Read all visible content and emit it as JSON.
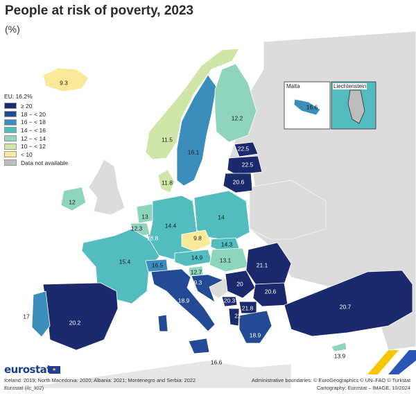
{
  "title": "People at risk of poverty, 2023",
  "subtitle": "(%)",
  "legend": {
    "heading": "EU: 16.2%",
    "items": [
      {
        "label": "≥ 20",
        "color": "#1a2a6c"
      },
      {
        "label": "18 − < 20",
        "color": "#234a94"
      },
      {
        "label": "16 − < 18",
        "color": "#3b8dbb"
      },
      {
        "label": "14 − < 16",
        "color": "#53bcbf"
      },
      {
        "label": "12 − < 14",
        "color": "#8fd5bc"
      },
      {
        "label": "10 − < 12",
        "color": "#cfe6a8"
      },
      {
        "label": "< 10",
        "color": "#fbe99a"
      },
      {
        "label": "Data not available",
        "color": "#bdbdbd"
      }
    ]
  },
  "insets": {
    "malta": "Malta",
    "liechtenstein": "Liechtenstein"
  },
  "colors": {
    "non_eu": "#dcdcdc",
    "sea": "#ffffff",
    "border": "#ffffff"
  },
  "map_data": [
    {
      "country": "Iceland",
      "value": "9.3",
      "cls": 6
    },
    {
      "country": "Norway",
      "value": "11.5",
      "cls": 5
    },
    {
      "country": "Sweden",
      "value": "16.1",
      "cls": 2
    },
    {
      "country": "Finland",
      "value": "12.2",
      "cls": 4
    },
    {
      "country": "Estonia",
      "value": "22.5",
      "cls": 0
    },
    {
      "country": "Latvia",
      "value": "22.5",
      "cls": 0
    },
    {
      "country": "Lithuania",
      "value": "20.6",
      "cls": 0
    },
    {
      "country": "Denmark",
      "value": "11.8",
      "cls": 5
    },
    {
      "country": "Ireland",
      "value": "12",
      "cls": 4
    },
    {
      "country": "Netherlands",
      "value": "13",
      "cls": 4
    },
    {
      "country": "Belgium",
      "value": "12.3",
      "cls": 4
    },
    {
      "country": "Luxembourg",
      "value": "18.8",
      "cls": 1
    },
    {
      "country": "Germany",
      "value": "14.4",
      "cls": 3
    },
    {
      "country": "Poland",
      "value": "14",
      "cls": 3
    },
    {
      "country": "Czechia",
      "value": "9.8",
      "cls": 6
    },
    {
      "country": "Slovakia",
      "value": "14.3",
      "cls": 3
    },
    {
      "country": "Austria",
      "value": "14.9",
      "cls": 3
    },
    {
      "country": "Hungary",
      "value": "13.1",
      "cls": 4
    },
    {
      "country": "France",
      "value": "15.4",
      "cls": 3
    },
    {
      "country": "Switzerland",
      "value": "16.5",
      "cls": 2
    },
    {
      "country": "Slovenia",
      "value": "12.7",
      "cls": 4
    },
    {
      "country": "Croatia",
      "value": "19.3",
      "cls": 1
    },
    {
      "country": "Romania",
      "value": "21.1",
      "cls": 0
    },
    {
      "country": "Serbia",
      "value": "20",
      "cls": 0
    },
    {
      "country": "Bulgaria",
      "value": "20.6",
      "cls": 0
    },
    {
      "country": "Montenegro",
      "value": "20.3",
      "cls": 0
    },
    {
      "country": "North Macedonia",
      "value": "21.8",
      "cls": 0
    },
    {
      "country": "Albania",
      "value": "22",
      "cls": 0
    },
    {
      "country": "Greece",
      "value": "18.9",
      "cls": 1
    },
    {
      "country": "Italy",
      "value": "18.9",
      "cls": 1
    },
    {
      "country": "Spain",
      "value": "20.2",
      "cls": 0
    },
    {
      "country": "Portugal",
      "value": "17",
      "cls": 2
    },
    {
      "country": "Turkey",
      "value": "20.7",
      "cls": 0
    },
    {
      "country": "Cyprus",
      "value": "13.9",
      "cls": 4
    },
    {
      "country": "Malta",
      "value": "16.6",
      "cls": 2
    },
    {
      "country": "Malta (main map)",
      "value": "16.6",
      "cls": 2
    }
  ],
  "footer": {
    "note": "Iceland: 2019; North Macedonia: 2020; Albania: 2021; Montenegro and Serbia: 2022",
    "source": "Eurostat (ilc_li02)",
    "admin": "Administrative boundaries: © EuroGeographics © UN–FAO © Turkstat",
    "carto": "Cartography: Eurostat – IMAGE, 10/2024"
  },
  "logo": "eurostat"
}
